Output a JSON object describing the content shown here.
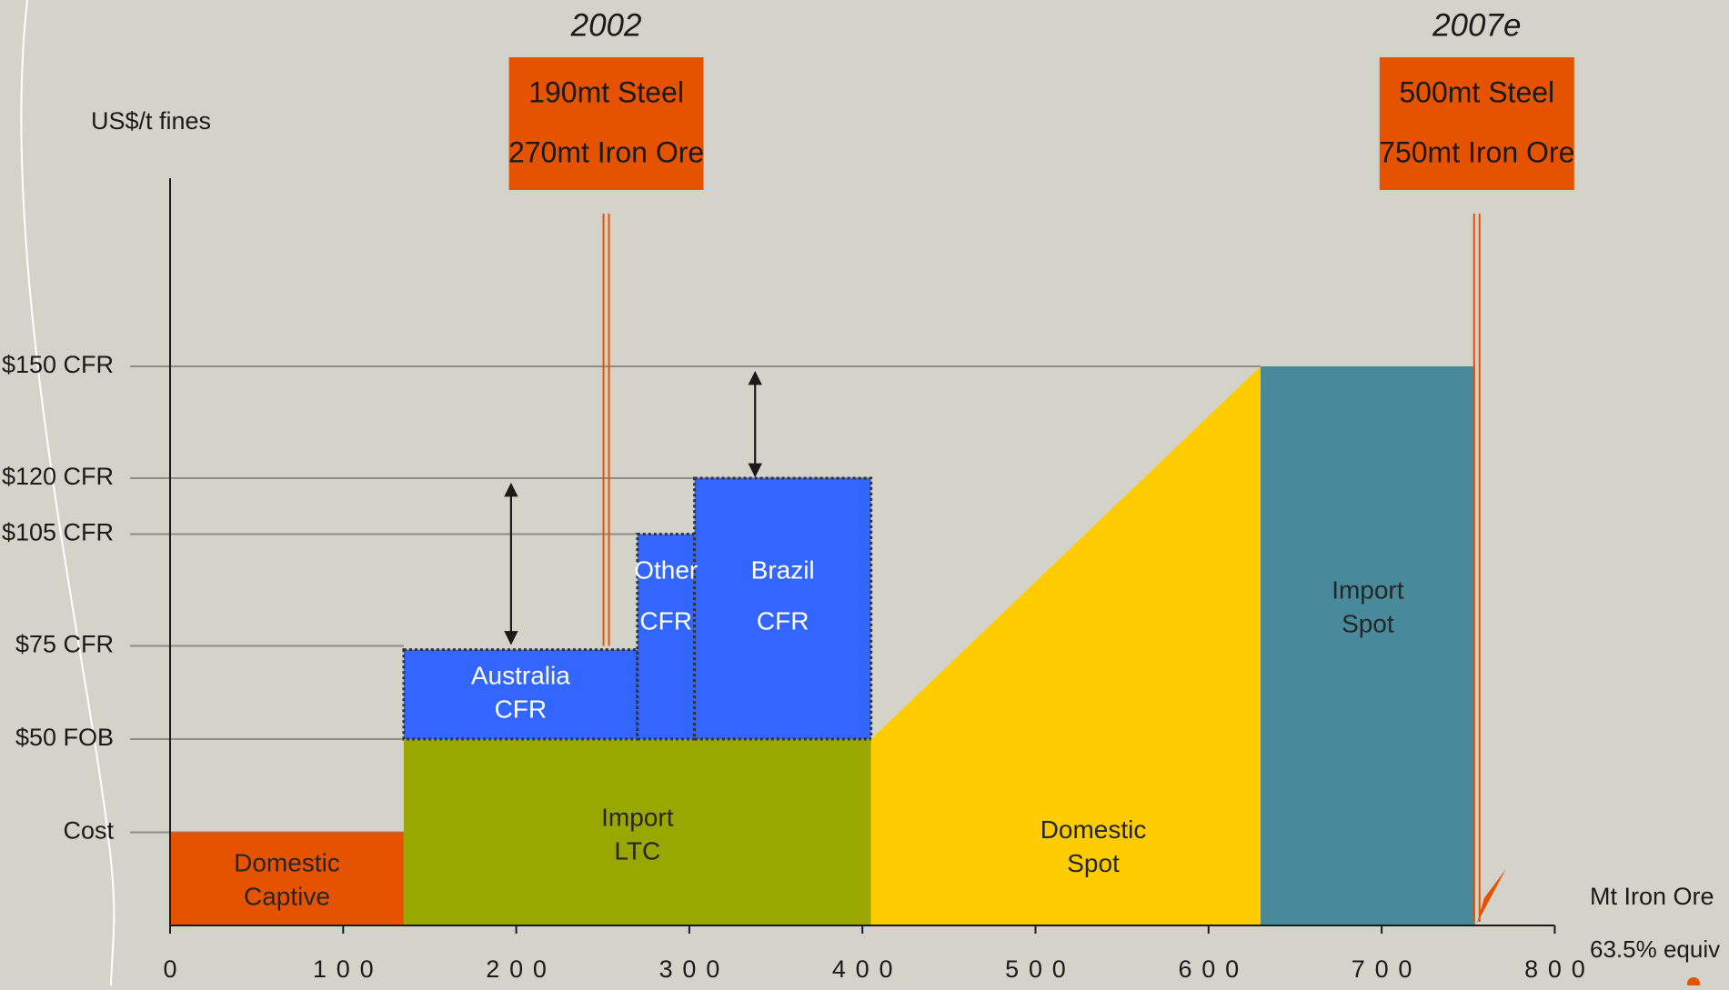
{
  "chart_data": {
    "type": "bar",
    "title": "",
    "xlabel": [
      "Mt Iron Ore",
      "63.5% equiv"
    ],
    "ylabel": "US$/t fines",
    "xlim": [
      0,
      800
    ],
    "x_ticks": [
      0,
      100,
      200,
      300,
      400,
      500,
      600,
      700,
      800
    ],
    "y_levels": [
      {
        "label": "$150 CFR",
        "value": 150
      },
      {
        "label": "$120 CFR",
        "value": 120
      },
      {
        "label": "$105 CFR",
        "value": 105
      },
      {
        "label": "$75 CFR",
        "value": 75
      },
      {
        "label": "$50 FOB",
        "value": 50
      },
      {
        "label": "Cost",
        "value": 25
      }
    ],
    "blocks": [
      {
        "label": [
          "Domestic",
          "Captive"
        ],
        "x0": 0,
        "x1": 135,
        "y0": 0,
        "y1": 25,
        "color": "#e55300",
        "text_color": "#262626",
        "border": false
      },
      {
        "label": [
          "Import",
          "LTC"
        ],
        "x0": 135,
        "x1": 405,
        "y0": 0,
        "y1": 50,
        "color": "#99a800",
        "text_color": "#262626",
        "border": false
      },
      {
        "label": [
          "Australia",
          "CFR"
        ],
        "x0": 135,
        "x1": 270,
        "y0": 50,
        "y1": 74,
        "color": "#3366ff",
        "text_color": "#ffffff",
        "border": true
      },
      {
        "label": [
          "Other",
          "CFR"
        ],
        "x0": 270,
        "x1": 303,
        "y0": 50,
        "y1": 105,
        "color": "#3366ff",
        "text_color": "#ffffff",
        "border": true
      },
      {
        "label": [
          "Brazil",
          "CFR"
        ],
        "x0": 303,
        "x1": 405,
        "y0": 50,
        "y1": 120,
        "color": "#3366ff",
        "text_color": "#ffffff",
        "border": true
      },
      {
        "label": [
          "Import",
          "Spot"
        ],
        "x0": 630,
        "x1": 754,
        "y0": 0,
        "y1": 150,
        "color": "#488a9a",
        "text_color": "#262626",
        "border": false
      }
    ],
    "wedge": {
      "label": [
        "Domestic",
        "Spot"
      ],
      "x0": 405,
      "x1": 630,
      "y_start": 50,
      "y_end": 150,
      "color": "#ffcc00",
      "text_color": "#262626"
    },
    "markers": [
      {
        "year": "2002",
        "x": 252,
        "lines": [
          "190mt Steel",
          "270mt Iron Ore"
        ],
        "color": "#e55300"
      },
      {
        "year": "2007e",
        "x": 755,
        "lines": [
          "500mt Steel",
          "750mt Iron Ore"
        ],
        "color": "#e55300"
      }
    ],
    "spreads": [
      {
        "x": 197,
        "y0": 75,
        "y1": 120
      },
      {
        "x": 338,
        "y0": 120,
        "y1": 150
      }
    ]
  }
}
